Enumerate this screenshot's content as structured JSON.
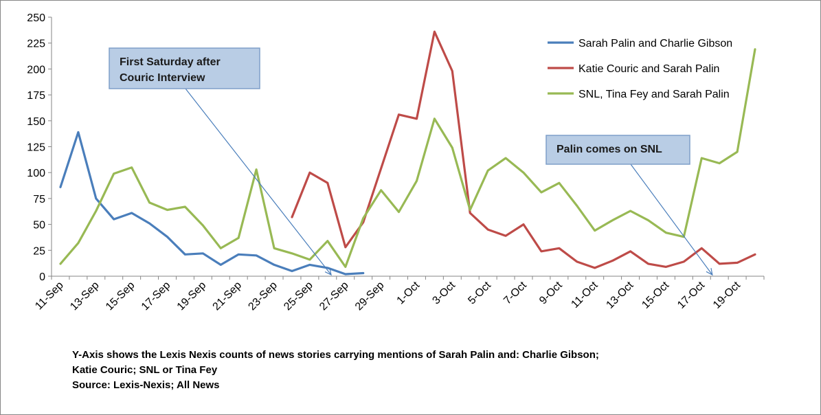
{
  "chart_data": {
    "type": "line",
    "ylim": [
      0,
      250
    ],
    "y_ticks": [
      0,
      25,
      50,
      75,
      100,
      125,
      150,
      175,
      200,
      225,
      250
    ],
    "x_tick_labels": [
      "11-Sep",
      "13-Sep",
      "15-Sep",
      "17-Sep",
      "19-Sep",
      "21-Sep",
      "23-Sep",
      "25-Sep",
      "27-Sep",
      "29-Sep",
      "1-Oct",
      "3-Oct",
      "5-Oct",
      "7-Oct",
      "9-Oct",
      "11-Oct",
      "13-Oct",
      "15-Oct",
      "17-Oct",
      "19-Oct"
    ],
    "grid": false,
    "legend_position": "top-right",
    "series": [
      {
        "name": "Sarah Palin and Charlie Gibson",
        "color": "#4a7ebb",
        "values": [
          86,
          139,
          75,
          55,
          61,
          51,
          38,
          21,
          22,
          11,
          21,
          20,
          11,
          5,
          11,
          8,
          2,
          3,
          null,
          null,
          null,
          null,
          null,
          null,
          null,
          null,
          null,
          null,
          null,
          null,
          null,
          null,
          null,
          null,
          null,
          null,
          null,
          null,
          null,
          null
        ]
      },
      {
        "name": "Katie Couric and Sarah Palin",
        "color": "#be4b48",
        "values": [
          null,
          null,
          null,
          null,
          null,
          null,
          null,
          null,
          null,
          null,
          null,
          null,
          null,
          57,
          100,
          90,
          28,
          52,
          104,
          156,
          152,
          236,
          198,
          61,
          45,
          39,
          50,
          24,
          27,
          14,
          8,
          15,
          24,
          12,
          9,
          14,
          27,
          12,
          13,
          21
        ]
      },
      {
        "name": "SNL, Tina Fey and Sarah Palin",
        "color": "#98b954",
        "values": [
          12,
          32,
          63,
          99,
          105,
          71,
          64,
          67,
          49,
          27,
          37,
          103,
          27,
          22,
          16,
          34,
          9,
          56,
          83,
          62,
          92,
          152,
          124,
          64,
          102,
          114,
          100,
          81,
          90,
          68,
          44,
          54,
          63,
          54,
          42,
          38,
          114,
          109,
          120,
          219
        ]
      }
    ],
    "annotations": [
      {
        "label": "First Saturday after Couric Interview",
        "lines": [
          "First Saturday after",
          "Couric Interview"
        ],
        "points_to_index": 15.2
      },
      {
        "label": "Palin comes on SNL",
        "lines": [
          "Palin comes on SNL"
        ],
        "points_to_index": 36.6
      }
    ],
    "footnote": [
      "Y-Axis shows the Lexis Nexis counts of news stories carrying mentions of Sarah Palin and: Charlie Gibson;",
      "Katie Couric; SNL or Tina Fey",
      "Source: Lexis-Nexis; All News"
    ]
  }
}
